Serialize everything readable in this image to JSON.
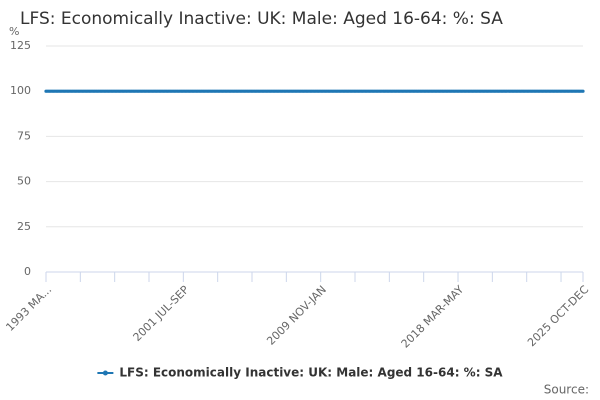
{
  "chart_data": {
    "type": "line",
    "title": "LFS: Economically Inactive: UK: Male: Aged 16-64: %: SA",
    "y_label": "%",
    "source_label": "Source:",
    "categories": [
      "1993 MA...",
      null,
      null,
      null,
      null,
      null,
      null,
      null,
      null,
      null,
      null,
      null,
      null,
      null,
      null,
      null,
      null,
      null,
      null,
      null,
      null,
      null,
      null,
      null,
      null,
      null,
      null,
      null,
      null,
      null,
      null,
      null,
      null,
      null,
      null,
      null,
      null,
      null,
      null,
      null,
      null,
      null,
      null,
      null,
      null,
      null,
      null,
      null,
      null,
      null,
      null,
      null,
      null,
      null,
      null,
      null,
      null,
      null,
      null,
      null,
      null,
      null,
      null,
      null,
      null,
      null,
      null,
      null,
      null,
      null,
      null,
      null,
      null,
      null,
      null,
      null,
      null,
      null,
      null,
      null,
      null,
      null,
      null,
      null,
      null,
      null,
      null,
      null,
      null,
      null,
      null,
      null,
      null,
      null,
      null,
      null,
      null,
      null,
      null,
      null,
      "2001 JUL-SEP",
      null,
      null,
      null,
      null,
      null,
      null,
      null,
      null,
      null,
      null,
      null,
      null,
      null,
      null,
      null,
      null,
      null,
      null,
      null,
      null,
      null,
      null,
      null,
      null,
      null,
      null,
      null,
      null,
      null,
      null,
      null,
      null,
      null,
      null,
      null,
      null,
      null,
      null,
      null,
      null,
      null,
      null,
      null,
      null,
      null,
      null,
      null,
      null,
      null,
      null,
      null,
      null,
      null,
      null,
      null,
      null,
      null,
      null,
      null,
      null,
      null,
      null,
      null,
      null,
      null,
      null,
      null,
      null,
      null,
      null,
      null,
      null,
      null,
      null,
      null,
      null,
      null,
      null,
      null,
      null,
      null,
      null,
      null,
      null,
      null,
      null,
      null,
      null,
      null,
      null,
      null,
      null,
      null,
      null,
      null,
      null,
      null,
      null,
      null,
      "2009 NOV-JAN",
      null,
      null,
      null,
      null,
      null,
      null,
      null,
      null,
      null,
      null,
      null,
      null,
      null,
      null,
      null,
      null,
      null,
      null,
      null,
      null,
      null,
      null,
      null,
      null,
      null,
      null,
      null,
      null,
      null,
      null,
      null,
      null,
      null,
      null,
      null,
      null,
      null,
      null,
      null,
      null,
      null,
      null,
      null,
      null,
      null,
      null,
      null,
      null,
      null,
      null,
      null,
      null,
      null,
      null,
      null,
      null,
      null,
      null,
      null,
      null,
      null,
      null,
      null,
      null,
      null,
      null,
      null,
      null,
      null,
      null,
      null,
      null,
      null,
      null,
      null,
      null,
      null,
      null,
      null,
      null,
      null,
      null,
      null,
      null,
      null,
      null,
      null,
      null,
      null,
      null,
      null,
      null,
      null,
      null,
      null,
      null,
      null,
      null,
      null,
      "2018 MAR-MAY",
      null,
      null,
      null,
      null,
      null,
      null,
      null,
      null,
      null,
      null,
      null,
      null,
      null,
      null,
      null,
      null,
      null,
      null,
      null,
      null,
      null,
      null,
      null,
      null,
      null,
      null,
      null,
      null,
      null,
      null,
      null,
      null,
      null,
      null,
      null,
      null,
      null,
      null,
      null,
      null,
      null,
      null,
      null,
      null,
      null,
      null,
      null,
      null,
      null,
      null,
      null,
      null,
      null,
      null,
      null,
      null,
      null,
      null,
      null,
      null,
      null,
      null,
      null,
      null,
      null,
      null,
      null,
      null,
      null,
      null,
      null,
      null,
      null,
      null,
      null,
      null,
      null,
      null,
      null,
      null,
      null,
      null,
      null,
      null,
      null,
      null,
      null,
      null,
      null,
      null,
      "2025 OCT-DEC"
    ],
    "series": [
      {
        "name": "LFS: Economically Inactive: UK: Male: Aged 16-64: %: SA",
        "color": "#1f77b4",
        "values": [
          100,
          100,
          100,
          100,
          100,
          100,
          100,
          100,
          100,
          100,
          100,
          100,
          100,
          100,
          100,
          100,
          100,
          100,
          100,
          100,
          100,
          100,
          100,
          100,
          100,
          100,
          100,
          100,
          100,
          100,
          100,
          100,
          100,
          100,
          100,
          100,
          100,
          100,
          100,
          100,
          100,
          100,
          100,
          100,
          100,
          100,
          100,
          100,
          100,
          100,
          100,
          100,
          100,
          100,
          100,
          100,
          100,
          100,
          100,
          100,
          100,
          100,
          100,
          100,
          100,
          100,
          100,
          100,
          100,
          100,
          100,
          100,
          100,
          100,
          100,
          100,
          100,
          100,
          100,
          100,
          100,
          100,
          100,
          100,
          100,
          100,
          100,
          100,
          100,
          100,
          100,
          100,
          100,
          100,
          100,
          100,
          100,
          100,
          100,
          100,
          100,
          100,
          100,
          100,
          100,
          100,
          100,
          100,
          100,
          100,
          100,
          100,
          100,
          100,
          100,
          100,
          100,
          100,
          100,
          100,
          100,
          100,
          100,
          100,
          100,
          100,
          100,
          100,
          100,
          100,
          100,
          100,
          100,
          100,
          100,
          100,
          100,
          100,
          100,
          100,
          100,
          100,
          100,
          100,
          100,
          100,
          100,
          100,
          100,
          100,
          100,
          100,
          100,
          100,
          100,
          100,
          100,
          100,
          100,
          100,
          100,
          100,
          100,
          100,
          100,
          100,
          100,
          100,
          100,
          100,
          100,
          100,
          100,
          100,
          100,
          100,
          100,
          100,
          100,
          100,
          100,
          100,
          100,
          100,
          100,
          100,
          100,
          100,
          100,
          100,
          100,
          100,
          100,
          100,
          100,
          100,
          100,
          100,
          100,
          100,
          100,
          100,
          100,
          100,
          100,
          100,
          100,
          100,
          100,
          100,
          100,
          100,
          100,
          100,
          100,
          100,
          100,
          100,
          100,
          100,
          100,
          100,
          100,
          100,
          100,
          100,
          100,
          100,
          100,
          100,
          100,
          100,
          100,
          100,
          100,
          100,
          100,
          100,
          100,
          100,
          100,
          100,
          100,
          100,
          100,
          100,
          100,
          100,
          100,
          100,
          100,
          100,
          100,
          100,
          100,
          100,
          100,
          100,
          100,
          100,
          100,
          100,
          100,
          100,
          100,
          100,
          100,
          100,
          100,
          100,
          100,
          100,
          100,
          100,
          100,
          100,
          100,
          100,
          100,
          100,
          100,
          100,
          100,
          100,
          100,
          100,
          100,
          100,
          100,
          100,
          100,
          100,
          100,
          100,
          100,
          100,
          100,
          100,
          100,
          100,
          100,
          100,
          100,
          100,
          100,
          100,
          100,
          100,
          100,
          100,
          100,
          100,
          100,
          100,
          100,
          100,
          100,
          100,
          100,
          100,
          100,
          100,
          100,
          100,
          100,
          100,
          100,
          100,
          100,
          100,
          100,
          100,
          100,
          100,
          100,
          100,
          100,
          100,
          100,
          100,
          100,
          100,
          100,
          100,
          100,
          100,
          100,
          100,
          100,
          100,
          100,
          100,
          100,
          100,
          100,
          100,
          100,
          100,
          100,
          100,
          100,
          100,
          100,
          100,
          100,
          100,
          100,
          100,
          100,
          100,
          100,
          100,
          100,
          100,
          100,
          100,
          100,
          100,
          100,
          100,
          100,
          100,
          100,
          100,
          100,
          100,
          100,
          100,
          100,
          100,
          100,
          100
        ]
      }
    ],
    "ylim": [
      0,
      125
    ],
    "yticks": [
      0,
      25,
      50,
      75,
      100,
      125
    ],
    "grid": true
  }
}
